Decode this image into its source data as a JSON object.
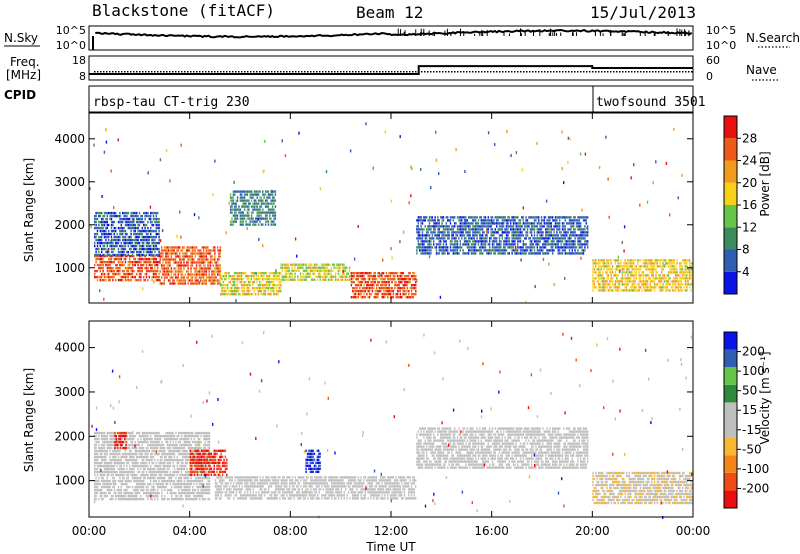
{
  "header": {
    "station": "Blackstone (fitACF)",
    "beam": "Beam 12",
    "date": "15/Jul/2013"
  },
  "noise_panel": {
    "left_label": "N.Sky",
    "right_label": "N.Search",
    "left_ticks": [
      "10^5",
      "10^0"
    ],
    "right_ticks": [
      "10^5",
      "10^0"
    ]
  },
  "freq_panel": {
    "left_label_top": "Freq.",
    "left_label_bottom": "[MHz]",
    "left_ticks": [
      "18",
      "8"
    ],
    "right_label": "Nave",
    "right_ticks": [
      "60",
      "0"
    ],
    "freq_mhz_steps": [
      {
        "from_hour": 0,
        "to_hour": 13.1,
        "value": 10.5
      },
      {
        "from_hour": 13.1,
        "to_hour": 20.0,
        "value": 13.8
      },
      {
        "from_hour": 20.0,
        "to_hour": 24.0,
        "value": 13.0
      }
    ]
  },
  "cpid_panel": {
    "label": "CPID",
    "programs": [
      {
        "name": "rbsp-tau CT-trig 230",
        "start_hour": 0
      },
      {
        "name": "twofsound 3501",
        "start_hour": 20.0
      }
    ]
  },
  "colors": {
    "power": [
      "#0a14e6",
      "#2e5fb0",
      "#3d8a5e",
      "#66c44a",
      "#f7d117",
      "#f29a1a",
      "#ee5a17",
      "#e80f0f"
    ],
    "velocity": [
      "#e80f0f",
      "#f04a17",
      "#f5861a",
      "#f7b733",
      "#bfbfbf",
      "#bfbfbf",
      "#2e8a3a",
      "#66c44a",
      "#2e5fb0",
      "#0a14e6"
    ]
  },
  "chart_data": [
    {
      "type": "heatmap",
      "name": "power",
      "ylabel": "Slant Range [km]",
      "ylim": [
        180,
        4600
      ],
      "xlim": [
        0,
        24
      ],
      "yticks": [
        "1000",
        "2000",
        "3000",
        "4000"
      ],
      "colorbar": {
        "label": "Power [dB]",
        "range": [
          0,
          32
        ],
        "ticks": [
          "4",
          "8",
          "12",
          "16",
          "20",
          "24",
          "28"
        ]
      },
      "regions": [
        {
          "t0": 0.2,
          "t1": 2.8,
          "r0": 700,
          "r1": 1300,
          "value": 27
        },
        {
          "t0": 0.2,
          "t1": 2.8,
          "r0": 1300,
          "r1": 2300,
          "value": 6
        },
        {
          "t0": 2.8,
          "t1": 5.2,
          "r0": 600,
          "r1": 1500,
          "value": 26
        },
        {
          "t0": 5.2,
          "t1": 7.6,
          "r0": 400,
          "r1": 900,
          "value": 18
        },
        {
          "t0": 5.6,
          "t1": 7.4,
          "r0": 2000,
          "r1": 2800,
          "value": 9
        },
        {
          "t0": 7.6,
          "t1": 10.4,
          "r0": 700,
          "r1": 1100,
          "value": 17
        },
        {
          "t0": 10.4,
          "t1": 13.0,
          "r0": 300,
          "r1": 900,
          "value": 27
        },
        {
          "t0": 13.0,
          "t1": 19.8,
          "r0": 1300,
          "r1": 2200,
          "value": 6
        },
        {
          "t0": 20.0,
          "t1": 24.0,
          "r0": 500,
          "r1": 1200,
          "value": 19
        }
      ]
    },
    {
      "type": "heatmap",
      "name": "velocity",
      "ylabel": "Slant Range [km]",
      "xlabel": "Time UT",
      "ylim": [
        180,
        4600
      ],
      "xlim": [
        0,
        24
      ],
      "yticks": [
        "1000",
        "2000",
        "3000",
        "4000"
      ],
      "xticks": [
        "00:00",
        "04:00",
        "08:00",
        "12:00",
        "16:00",
        "20:00",
        "00:00"
      ],
      "colorbar": {
        "label": "Velocity [m s⁻¹]",
        "range": [
          -250,
          250
        ],
        "ticks": [
          "200",
          "100",
          "50",
          "15",
          "-15",
          "-50",
          "-100",
          "-200"
        ]
      },
      "regions": [
        {
          "t0": 0.2,
          "t1": 4.8,
          "r0": 600,
          "r1": 2100,
          "value": 0
        },
        {
          "t0": 1.0,
          "t1": 1.5,
          "r0": 1700,
          "r1": 2100,
          "value": -220
        },
        {
          "t0": 4.0,
          "t1": 5.5,
          "r0": 1100,
          "r1": 1700,
          "value": -200
        },
        {
          "t0": 5.0,
          "t1": 13.0,
          "r0": 600,
          "r1": 1100,
          "value": 0
        },
        {
          "t0": 8.6,
          "t1": 9.2,
          "r0": 1200,
          "r1": 1700,
          "value": 210
        },
        {
          "t0": 13.0,
          "t1": 19.8,
          "r0": 1300,
          "r1": 2200,
          "value": 0
        },
        {
          "t0": 20.0,
          "t1": 24.0,
          "r0": 500,
          "r1": 1200,
          "value": -40
        }
      ]
    }
  ]
}
